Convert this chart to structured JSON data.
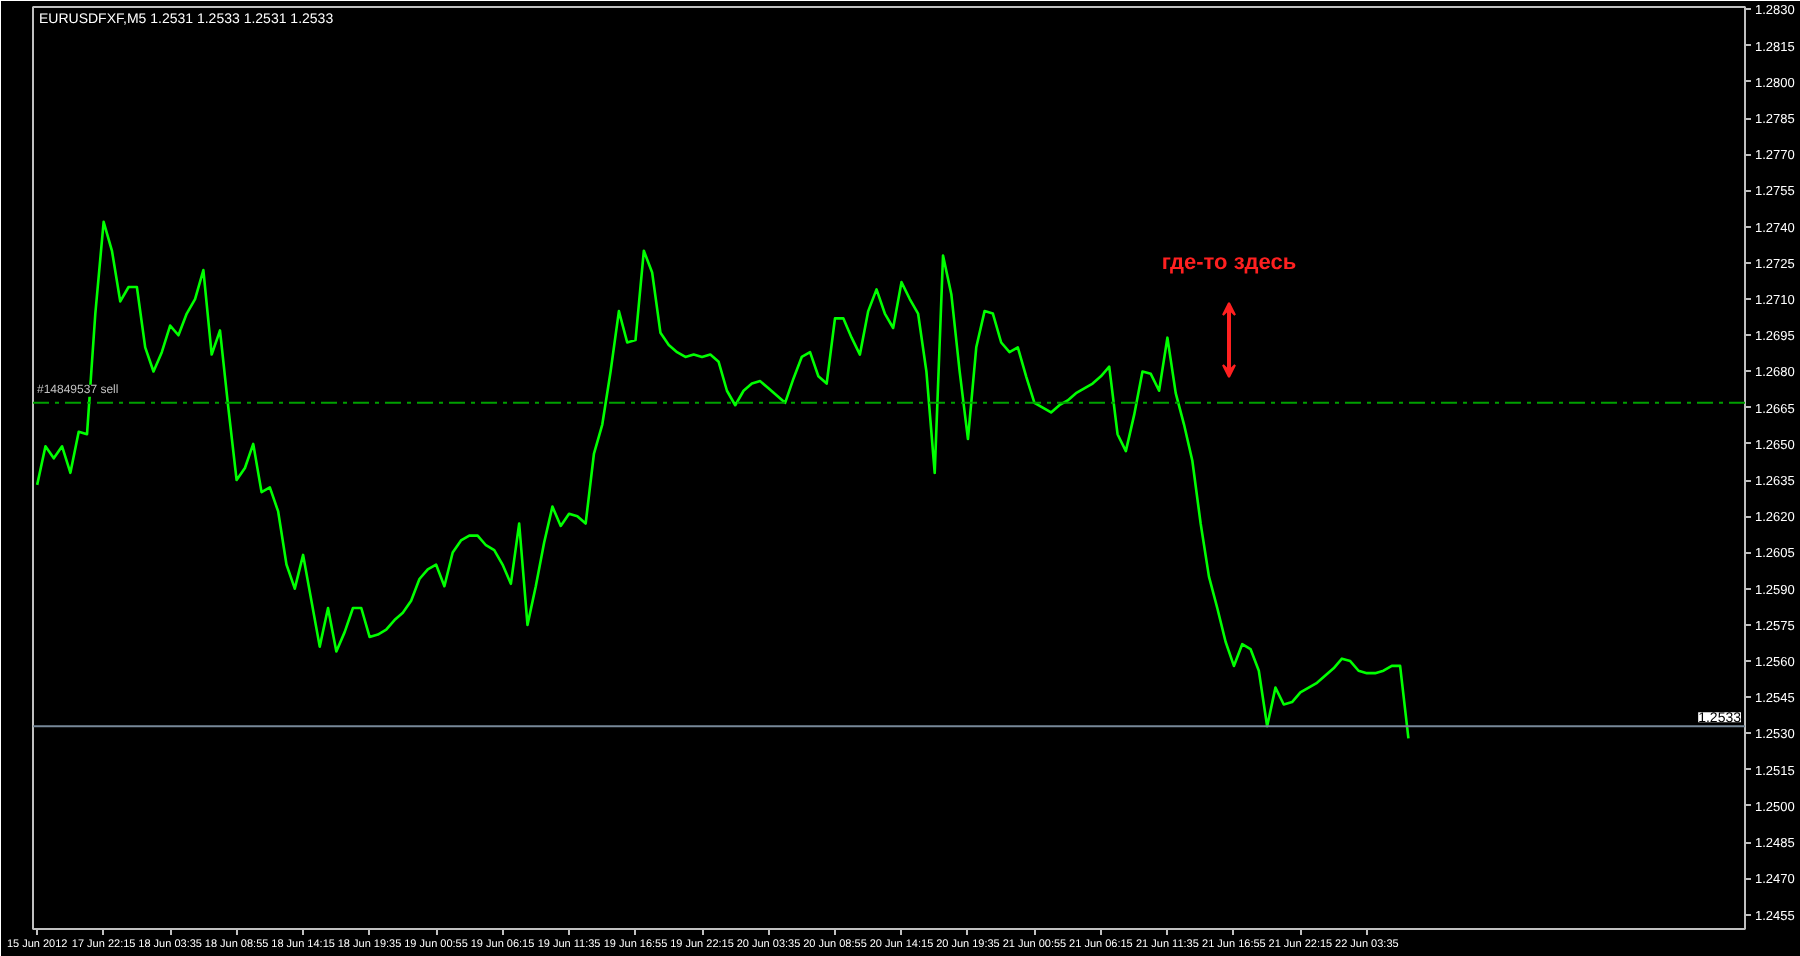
{
  "chart_data": {
    "type": "line",
    "title": "EURUSDFXF,M5  1.2531 1.2533 1.2531 1.2533",
    "categories": [
      "15 Jun 2012",
      null,
      null,
      null,
      null,
      null,
      null,
      null,
      "17 Jun 22:15",
      null,
      null,
      null,
      null,
      null,
      null,
      null,
      "18 Jun 03:35",
      null,
      null,
      null,
      null,
      null,
      null,
      null,
      "18 Jun 08:55",
      null,
      null,
      null,
      null,
      null,
      null,
      null,
      "18 Jun 14:15",
      null,
      null,
      null,
      null,
      null,
      null,
      null,
      "18 Jun 19:35",
      null,
      null,
      null,
      null,
      null,
      null,
      null,
      "19 Jun 00:55",
      null,
      null,
      null,
      null,
      null,
      null,
      null,
      "19 Jun 06:15",
      null,
      null,
      null,
      null,
      null,
      null,
      null,
      "19 Jun 11:35",
      null,
      null,
      null,
      null,
      null,
      null,
      null,
      "19 Jun 16:55",
      null,
      null,
      null,
      null,
      null,
      null,
      null,
      "19 Jun 22:15",
      null,
      null,
      null,
      null,
      null,
      null,
      null,
      "20 Jun 03:35",
      null,
      null,
      null,
      null,
      null,
      null,
      null,
      "20 Jun 08:55",
      null,
      null,
      null,
      null,
      null,
      null,
      null,
      "20 Jun 14:15",
      null,
      null,
      null,
      null,
      null,
      null,
      null,
      "20 Jun 19:35",
      null,
      null,
      null,
      null,
      null,
      null,
      null,
      "21 Jun 00:55",
      null,
      null,
      null,
      null,
      null,
      null,
      null,
      "21 Jun 06:15",
      null,
      null,
      null,
      null,
      null,
      null,
      null,
      "21 Jun 11:35",
      null,
      null,
      null,
      null,
      null,
      null,
      null,
      "21 Jun 16:55",
      null,
      null,
      null,
      null,
      null,
      null,
      null,
      "21 Jun 22:15",
      null,
      null,
      null,
      null,
      null,
      null,
      null,
      "22 Jun 03:35",
      null,
      null,
      null,
      null,
      null,
      null,
      null,
      null,
      null,
      null,
      null,
      null,
      null,
      null,
      null,
      null,
      null,
      null,
      null,
      null,
      null,
      null,
      null,
      null,
      null,
      null,
      null,
      null,
      null,
      null,
      null,
      null,
      null,
      null,
      null,
      null,
      null,
      null,
      null,
      null,
      null,
      null,
      null,
      null,
      null
    ],
    "series": [
      {
        "color": "#00ff00",
        "values": [
          1.2633,
          1.2649,
          1.2644,
          1.2649,
          1.2638,
          1.2655,
          1.2654,
          1.2704,
          1.2742,
          1.273,
          1.2709,
          1.2715,
          1.2715,
          1.269,
          1.268,
          1.2688,
          1.2699,
          1.2695,
          1.2704,
          1.271,
          1.2722,
          1.2687,
          1.2697,
          1.2665,
          1.2635,
          1.264,
          1.265,
          1.263,
          1.2632,
          1.2622,
          1.26,
          1.259,
          1.2604,
          1.2585,
          1.2566,
          1.2582,
          1.2564,
          1.2572,
          1.2582,
          1.2582,
          1.257,
          1.2571,
          1.2573,
          1.2577,
          1.258,
          1.2585,
          1.2594,
          1.2598,
          1.26,
          1.2591,
          1.2605,
          1.261,
          1.2612,
          1.2612,
          1.2608,
          1.2606,
          1.26,
          1.2592,
          1.2617,
          1.2575,
          1.2591,
          1.2609,
          1.2624,
          1.2616,
          1.2621,
          1.262,
          1.2617,
          1.2646,
          1.2658,
          1.268,
          1.2705,
          1.2692,
          1.2693,
          1.273,
          1.2721,
          1.2696,
          1.2691,
          1.2688,
          1.2686,
          1.2687,
          1.2686,
          1.2687,
          1.2684,
          1.2672,
          1.2666,
          1.2672,
          1.2675,
          1.2676,
          1.2673,
          1.267,
          1.2667,
          1.2677,
          1.2686,
          1.2688,
          1.2678,
          1.2675,
          1.2702,
          1.2702,
          1.2694,
          1.2687,
          1.2705,
          1.2714,
          1.2704,
          1.2698,
          1.2717,
          1.271,
          1.2704,
          1.268,
          1.2638,
          1.2728,
          1.2712,
          1.268,
          1.2652,
          1.269,
          1.2705,
          1.2704,
          1.2692,
          1.2688,
          1.269,
          1.2678,
          1.2667,
          1.2665,
          1.2663,
          1.2666,
          1.2668,
          1.2671,
          1.2673,
          1.2675,
          1.2678,
          1.2682,
          1.2654,
          1.2647,
          1.2662,
          1.268,
          1.2679,
          1.2672,
          1.2694,
          1.2671,
          1.2658,
          1.2643,
          1.2617,
          1.2595,
          1.2582,
          1.2568,
          1.2558,
          1.2567,
          1.2565,
          1.2556,
          1.2533,
          1.2549,
          1.2542,
          1.2543,
          1.2547,
          1.2549,
          1.2551,
          1.2554,
          1.2557,
          1.2561,
          1.256,
          1.2556,
          1.2555,
          1.2555,
          1.2556,
          1.2558,
          1.2558,
          1.2528,
          null,
          null,
          null,
          null,
          null,
          null,
          null,
          null,
          null,
          null,
          null,
          null,
          null,
          null,
          null,
          null,
          null,
          null,
          null,
          null,
          null,
          null,
          null,
          null,
          null,
          null,
          null,
          null,
          null,
          null,
          null,
          null,
          null,
          null,
          null,
          null,
          null,
          null,
          null,
          null
        ]
      }
    ],
    "ylim": [
      1.2449,
      1.2831
    ],
    "yticks": [
      1.2455,
      {
        "value": 1.247,
        "label": "1.2470"
      },
      1.2485,
      {
        "value": 1.25,
        "label": "1.2500"
      },
      1.2515,
      {
        "value": 1.253,
        "label": "1.2530"
      },
      1.2545,
      {
        "value": 1.256,
        "label": "1.2560"
      },
      1.2575,
      {
        "value": 1.259,
        "label": "1.2590"
      },
      1.2605,
      {
        "value": 1.262,
        "label": "1.2620"
      },
      1.2635,
      {
        "value": 1.265,
        "label": "1.2650"
      },
      1.2665,
      {
        "value": 1.268,
        "label": "1.2680"
      },
      1.2695,
      {
        "value": 1.271,
        "label": "1.2710"
      },
      1.2725,
      {
        "value": 1.274,
        "label": "1.2740"
      },
      1.2755,
      {
        "value": 1.277,
        "label": "1.2770"
      },
      1.2785,
      {
        "value": 1.28,
        "label": "1.2800"
      },
      1.2815,
      {
        "value": 1.283,
        "label": "1.2830"
      }
    ],
    "ref_lines": [
      {
        "axis": "y",
        "value": 1.2667,
        "label": "#14849537 sell",
        "color": "#00a000",
        "line_style": "dashed"
      },
      {
        "axis": "y",
        "value": 1.2533,
        "label": "1.2533",
        "color": "#778899",
        "line_style": "solid"
      }
    ],
    "annotations": [
      "где-то здесь"
    ],
    "grid": false
  }
}
